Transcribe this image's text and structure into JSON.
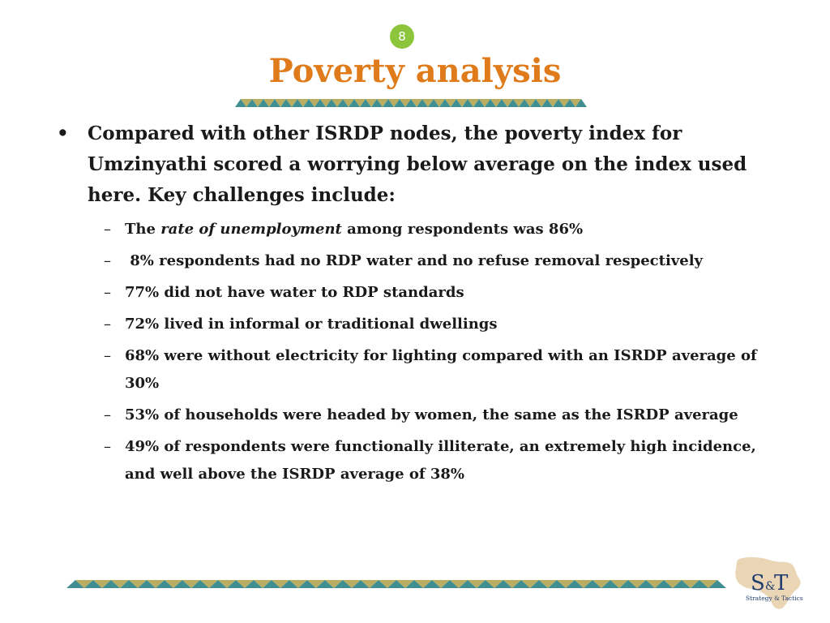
{
  "slide": {
    "number": "8",
    "title": "Poverty analysis"
  },
  "content": {
    "main_bullet_symbol": "•",
    "main_bullet": "Compared with other ISRDP nodes, the poverty index for Umzinyathi scored a worrying below average on the index used here. Key challenges include:",
    "sub_dash_symbol": "–",
    "sub_items": [
      {
        "before": "The ",
        "italic": "rate of unemployment",
        "after": " among respondents was 86%"
      },
      {
        "text": " 8% respondents had no RDP water and no refuse removal respectively"
      },
      {
        "text": "77% did not have water to RDP standards"
      },
      {
        "text": "72% lived in informal or traditional dwellings"
      },
      {
        "text": "68% were without electricity for lighting compared with an ISRDP average of 30%"
      },
      {
        "text": "53% of households were headed by women, the same as the ISRDP average"
      },
      {
        "text": "49% of respondents were functionally illiterate, an extremely high incidence, and well above the ISRDP average of 38%"
      }
    ]
  },
  "logo": {
    "mark_s": "S",
    "mark_amp": "&",
    "mark_t": "T",
    "tagline": "Strategy & Tactics"
  },
  "colors": {
    "title": "#e07b1b",
    "slide_number_bg": "#8cc43c",
    "border_olive": "#b8ad63",
    "border_teal": "#3f8f92",
    "logo_map": "#e6cfa8"
  }
}
